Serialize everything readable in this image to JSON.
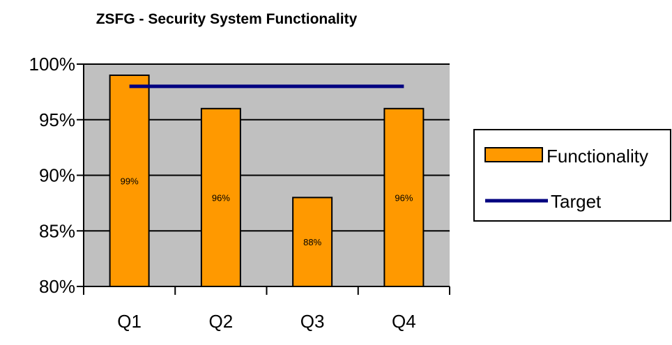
{
  "chart_data": {
    "type": "bar",
    "title": "ZSFG - Security System Functionality",
    "categories": [
      "Q1",
      "Q2",
      "Q3",
      "Q4"
    ],
    "series": [
      {
        "name": "Functionality",
        "type": "bar",
        "values": [
          0.99,
          0.96,
          0.88,
          0.96
        ],
        "color": "#ff9900"
      },
      {
        "name": "Target",
        "type": "line",
        "values": [
          0.98,
          0.98,
          0.98,
          0.98
        ],
        "color": "#000080"
      }
    ],
    "data_labels": [
      "99%",
      "96%",
      "88%",
      "96%"
    ],
    "ylim": [
      0.8,
      1.0
    ],
    "yticks": [
      0.8,
      0.85,
      0.9,
      0.95,
      1.0
    ],
    "ytick_labels": [
      "80%",
      "85%",
      "90%",
      "95%",
      "100%"
    ],
    "xlabel": "",
    "ylabel": "",
    "grid": "horizontal",
    "plot_background": "#c0c0c0",
    "legend_position": "right"
  }
}
